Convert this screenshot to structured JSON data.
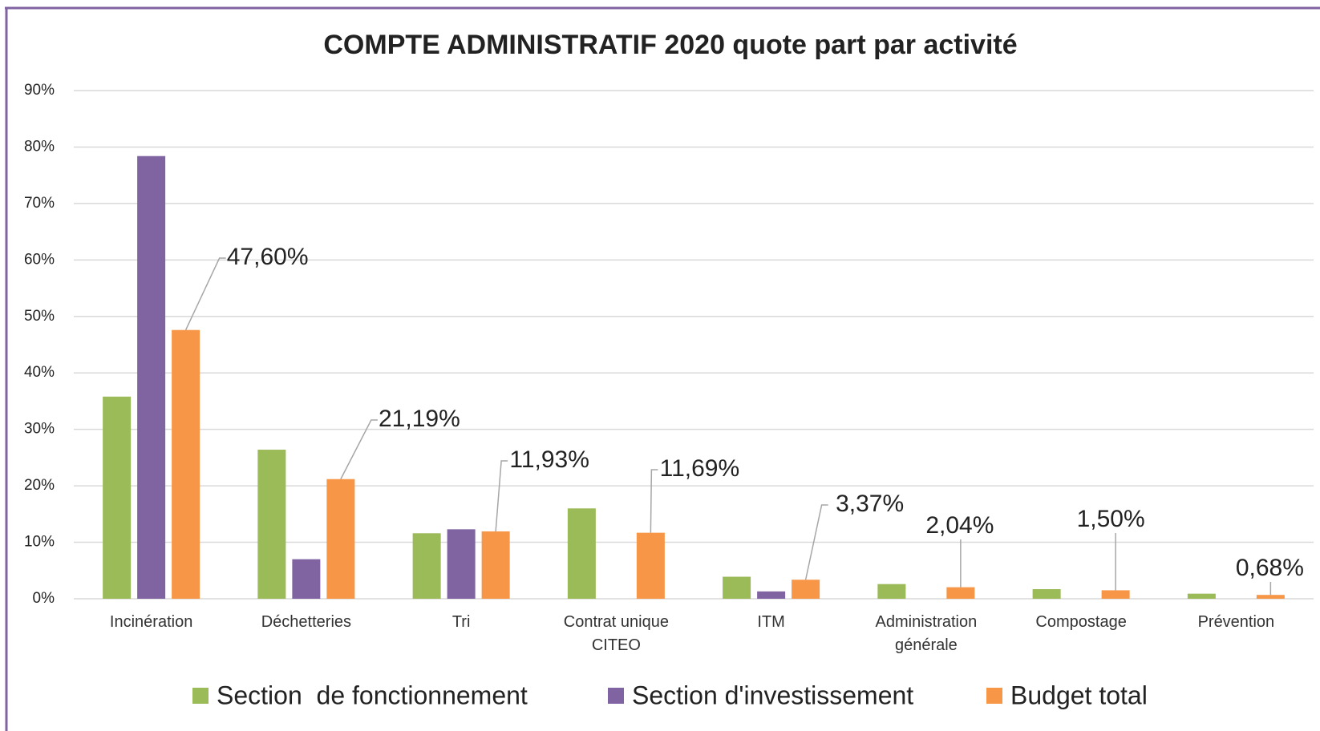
{
  "chart_data": {
    "type": "bar",
    "title": "COMPTE ADMINISTRATIF 2020 quote part par activité",
    "categories": [
      "Incinération",
      "Déchetteries",
      "Tri",
      "Contrat unique CITEO",
      "ITM",
      "Administration générale",
      "Compostage",
      "Prévention"
    ],
    "series": [
      {
        "name": "Section  de fonctionnement",
        "color": "#9bbb59",
        "values": [
          35.8,
          26.4,
          11.6,
          16.0,
          3.9,
          2.6,
          1.7,
          0.9
        ]
      },
      {
        "name": "Section d'investissement",
        "color": "#8064a2",
        "values": [
          78.4,
          7.0,
          12.3,
          null,
          1.3,
          null,
          null,
          null
        ]
      },
      {
        "name": "Budget total",
        "color": "#f79646",
        "values": [
          47.6,
          21.19,
          11.93,
          11.69,
          3.37,
          2.04,
          1.5,
          0.68
        ],
        "value_labels": [
          "47,60%",
          "21,19%",
          "11,93%",
          "11,69%",
          "3,37%",
          "2,04%",
          "1,50%",
          "0,68%"
        ]
      }
    ],
    "ylim": [
      0,
      90
    ],
    "yticks": [
      {
        "value": 0,
        "label": "0%"
      },
      {
        "value": 10,
        "label": "10%"
      },
      {
        "value": 20,
        "label": "20%"
      },
      {
        "value": 30,
        "label": "30%"
      },
      {
        "value": 40,
        "label": "40%"
      },
      {
        "value": 50,
        "label": "50%"
      },
      {
        "value": 60,
        "label": "60%"
      },
      {
        "value": 70,
        "label": "70%"
      },
      {
        "value": 80,
        "label": "80%"
      },
      {
        "value": 90,
        "label": "90%"
      }
    ],
    "grid": true,
    "legend": "bottom"
  }
}
